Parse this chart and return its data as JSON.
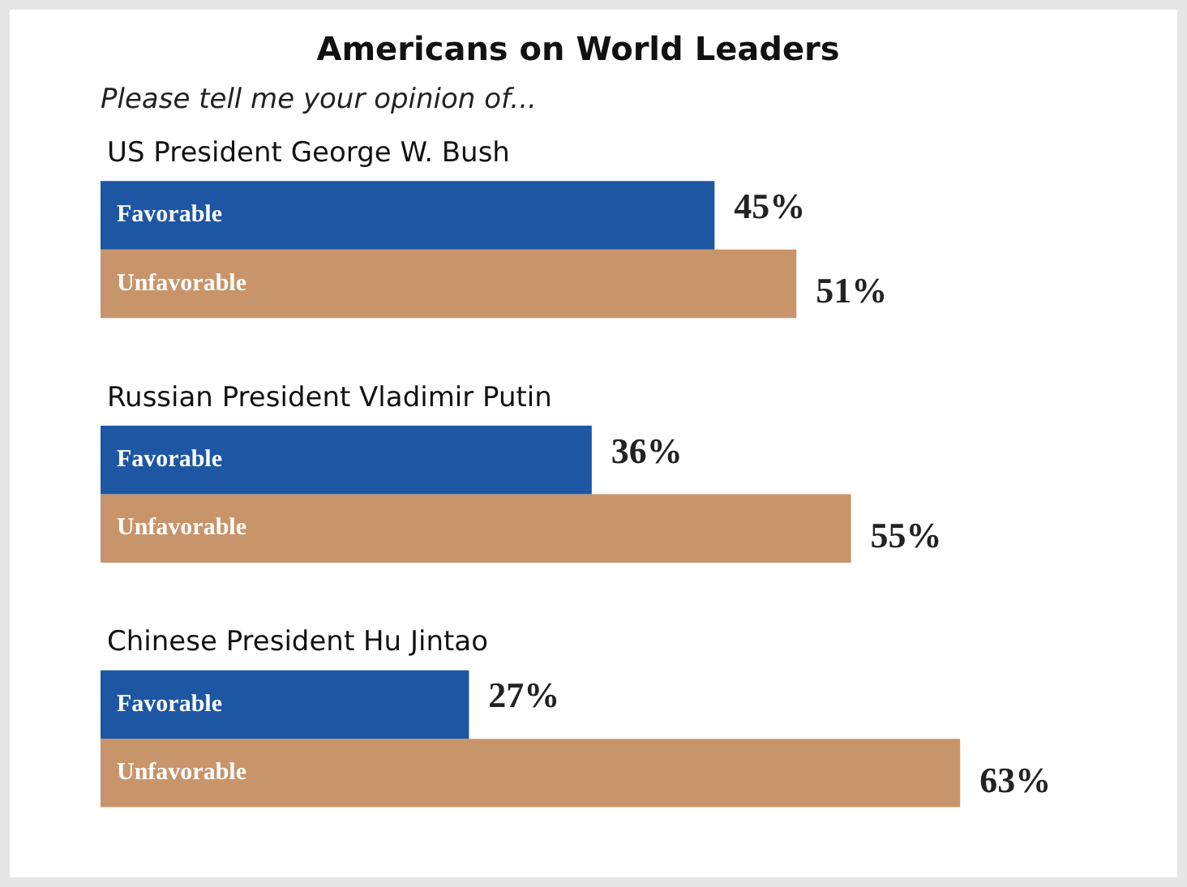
{
  "chart_data": {
    "type": "bar",
    "orientation": "horizontal",
    "title": "Americans on World Leaders",
    "subtitle": "Please tell me your opinion of...",
    "categories": [
      "US President George W. Bush",
      "Russian President Vladimir Putin",
      "Chinese President Hu Jintao"
    ],
    "series": [
      {
        "name": "Favorable",
        "color": "#1d56a3",
        "values": [
          45,
          36,
          27
        ],
        "value_labels": [
          "45%",
          "36%",
          "27%"
        ]
      },
      {
        "name": "Unfavorable",
        "color": "#c8946a",
        "values": [
          51,
          55,
          63
        ],
        "value_labels": [
          "51%",
          "55%",
          "63%"
        ]
      }
    ],
    "legend": false
  }
}
